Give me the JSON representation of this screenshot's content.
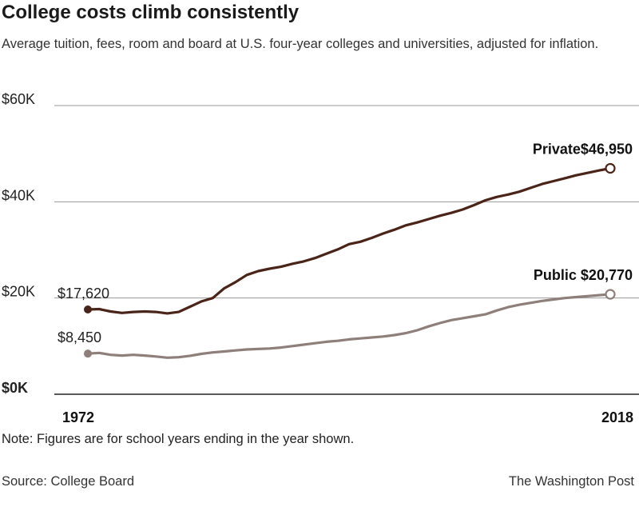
{
  "header": {
    "title": "College costs climb consistently",
    "subtitle": "Average tuition, fees, room and board at U.S. four-year colleges and universities, adjusted for inflation."
  },
  "footer": {
    "note": "Note: Figures are for school years ending in the year shown.",
    "source": "Source: College Board",
    "credit": "The Washington Post"
  },
  "colors": {
    "private": "#4a2418",
    "public": "#8e7f7b",
    "grid": "#999999",
    "axis": "#222222"
  },
  "chart_data": {
    "type": "line",
    "ylim": [
      0,
      60000
    ],
    "xlim": [
      1972,
      2018
    ],
    "y_ticks": [
      {
        "value": 0,
        "label": "$0K"
      },
      {
        "value": 20000,
        "label": "$20K"
      },
      {
        "value": 40000,
        "label": "$40K"
      },
      {
        "value": 60000,
        "label": "$60K"
      }
    ],
    "x_tick_labels": [
      {
        "value": 1972,
        "label": "1972"
      },
      {
        "value": 2018,
        "label": "2018"
      }
    ],
    "grid": true,
    "series": [
      {
        "name": "Private",
        "start_label": "$17,620",
        "end_label": "$46,950",
        "x": [
          1972,
          1973,
          1974,
          1975,
          1976,
          1977,
          1978,
          1979,
          1980,
          1981,
          1982,
          1983,
          1984,
          1985,
          1986,
          1987,
          1988,
          1989,
          1990,
          1991,
          1992,
          1993,
          1994,
          1995,
          1996,
          1997,
          1998,
          1999,
          2000,
          2001,
          2002,
          2003,
          2004,
          2005,
          2006,
          2007,
          2008,
          2009,
          2010,
          2011,
          2012,
          2013,
          2014,
          2015,
          2016,
          2017,
          2018
        ],
        "values": [
          17620,
          17700,
          17200,
          16900,
          17100,
          17200,
          17100,
          16800,
          17100,
          18200,
          19300,
          20000,
          22000,
          23300,
          24800,
          25600,
          26100,
          26500,
          27100,
          27600,
          28300,
          29200,
          30100,
          31200,
          31700,
          32500,
          33400,
          34200,
          35100,
          35700,
          36400,
          37100,
          37700,
          38400,
          39300,
          40300,
          41000,
          41500,
          42100,
          42900,
          43700,
          44300,
          44900,
          45500,
          46000,
          46500,
          46950
        ]
      },
      {
        "name": "Public",
        "start_label": "$8,450",
        "end_label": "$20,770",
        "x": [
          1972,
          1973,
          1974,
          1975,
          1976,
          1977,
          1978,
          1979,
          1980,
          1981,
          1982,
          1983,
          1984,
          1985,
          1986,
          1987,
          1988,
          1989,
          1990,
          1991,
          1992,
          1993,
          1994,
          1995,
          1996,
          1997,
          1998,
          1999,
          2000,
          2001,
          2002,
          2003,
          2004,
          2005,
          2006,
          2007,
          2008,
          2009,
          2010,
          2011,
          2012,
          2013,
          2014,
          2015,
          2016,
          2017,
          2018
        ],
        "values": [
          8450,
          8600,
          8200,
          8050,
          8200,
          8050,
          7850,
          7600,
          7700,
          8000,
          8400,
          8700,
          8900,
          9100,
          9300,
          9400,
          9500,
          9700,
          10000,
          10300,
          10600,
          10900,
          11100,
          11400,
          11600,
          11800,
          12000,
          12300,
          12700,
          13300,
          14100,
          14800,
          15400,
          15800,
          16200,
          16600,
          17400,
          18100,
          18600,
          19000,
          19400,
          19700,
          20000,
          20200,
          20400,
          20600,
          20770
        ]
      }
    ]
  }
}
